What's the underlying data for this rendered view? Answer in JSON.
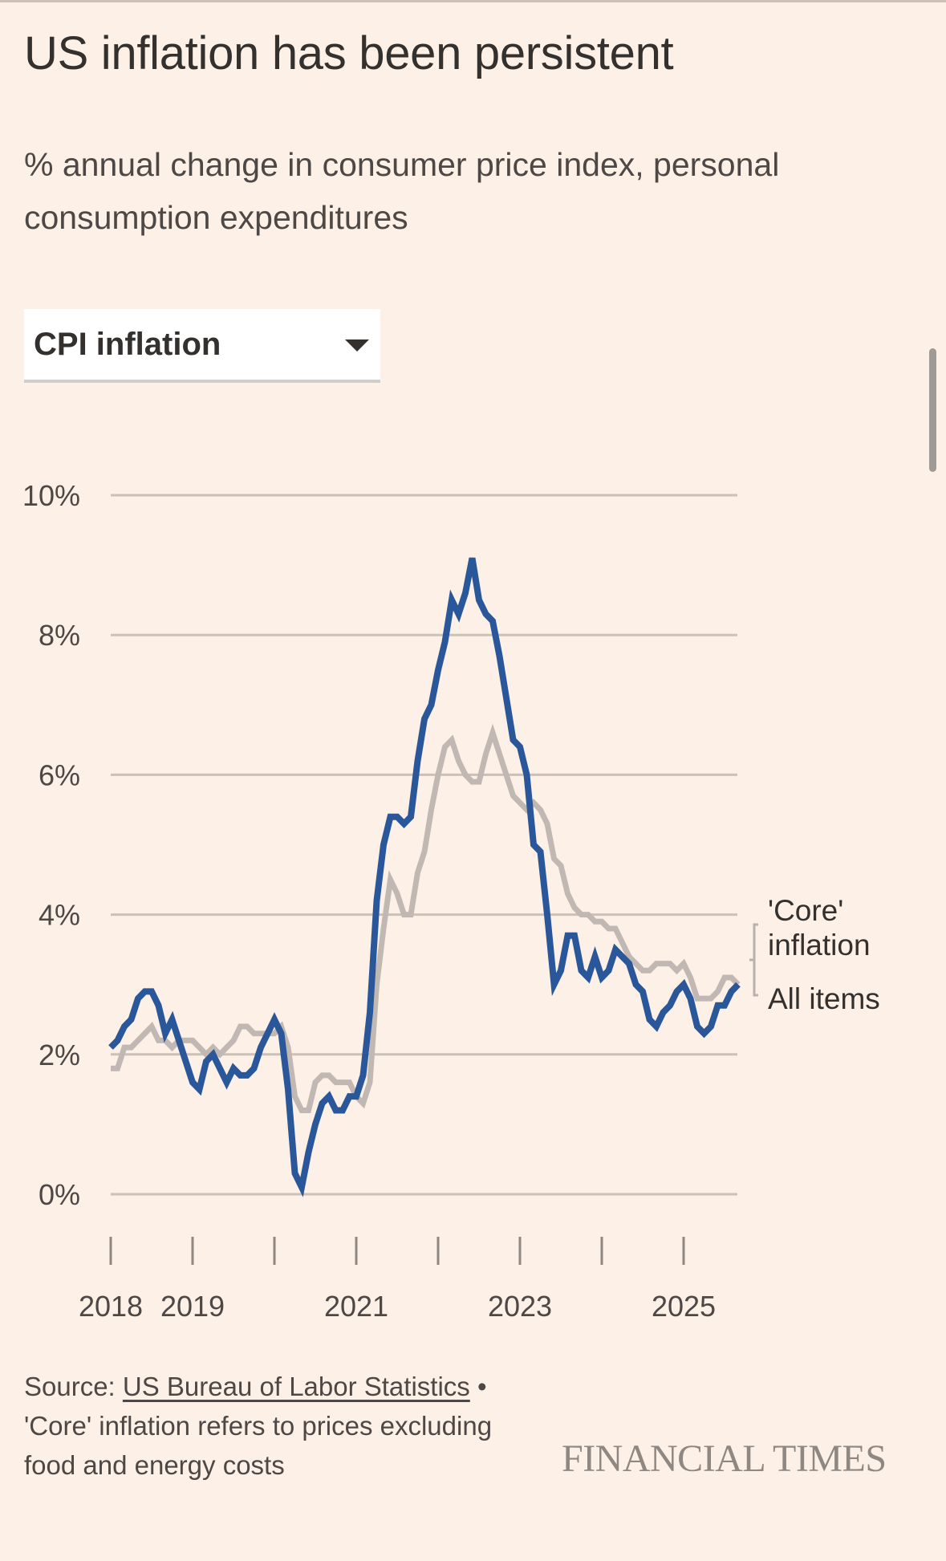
{
  "header": {
    "title": "US inflation has been persistent",
    "subtitle": "% annual change in consumer price index, personal consumption expenditures"
  },
  "dropdown": {
    "selected": "CPI inflation",
    "icon": "caret-down-icon"
  },
  "footer": {
    "source_prefix": "Source: ",
    "source_link": "US Bureau of Labor Statistics",
    "separator": " •",
    "note": "'Core' inflation refers to prices excluding food and energy costs",
    "brand": "FINANCIAL TIMES"
  },
  "colors": {
    "background": "#fdf0e6",
    "all_items": "#2a5799",
    "core": "#c2b8b3",
    "gridline": "#ccc1b7",
    "text": "#33302e"
  },
  "chart_data": {
    "type": "line",
    "title": "US inflation has been persistent",
    "subtitle": "% annual change in consumer price index, personal consumption expenditures",
    "xlabel": "",
    "ylabel": "",
    "x_start": "2018-01",
    "x_frequency": "monthly",
    "x_range": [
      "2018-01",
      "2025-09"
    ],
    "ylim": [
      0,
      10
    ],
    "y_ticks": [
      0,
      2,
      4,
      6,
      8,
      10
    ],
    "y_tick_labels": [
      "0%",
      "2%",
      "4%",
      "6%",
      "8%",
      "10%"
    ],
    "x_ticks": [
      2018,
      2019,
      2020,
      2021,
      2022,
      2023,
      2024,
      2025
    ],
    "x_tick_labels": [
      "2018",
      "2019",
      "",
      "2021",
      "",
      "2023",
      "",
      "2025"
    ],
    "grid": true,
    "legend": "right-end labels",
    "series": [
      {
        "name": "All items",
        "label": "All items",
        "values": [
          2.1,
          2.2,
          2.4,
          2.5,
          2.8,
          2.9,
          2.9,
          2.7,
          2.3,
          2.5,
          2.2,
          1.9,
          1.6,
          1.5,
          1.9,
          2.0,
          1.8,
          1.6,
          1.8,
          1.7,
          1.7,
          1.8,
          2.1,
          2.3,
          2.5,
          2.3,
          1.5,
          0.3,
          0.1,
          0.6,
          1.0,
          1.3,
          1.4,
          1.2,
          1.2,
          1.4,
          1.4,
          1.7,
          2.6,
          4.2,
          5.0,
          5.4,
          5.4,
          5.3,
          5.4,
          6.2,
          6.8,
          7.0,
          7.5,
          7.9,
          8.5,
          8.3,
          8.6,
          9.1,
          8.5,
          8.3,
          8.2,
          7.7,
          7.1,
          6.5,
          6.4,
          6.0,
          5.0,
          4.9,
          4.0,
          3.0,
          3.2,
          3.7,
          3.7,
          3.2,
          3.1,
          3.4,
          3.1,
          3.2,
          3.5,
          3.4,
          3.3,
          3.0,
          2.9,
          2.5,
          2.4,
          2.6,
          2.7,
          2.9,
          3.0,
          2.8,
          2.4,
          2.3,
          2.4,
          2.7,
          2.7,
          2.9,
          3.0
        ]
      },
      {
        "name": "'Core' inflation",
        "label": "'Core' inflation",
        "values": [
          1.8,
          1.8,
          2.1,
          2.1,
          2.2,
          2.3,
          2.4,
          2.2,
          2.2,
          2.1,
          2.2,
          2.2,
          2.2,
          2.1,
          2.0,
          2.1,
          2.0,
          2.1,
          2.2,
          2.4,
          2.4,
          2.3,
          2.3,
          2.3,
          2.3,
          2.4,
          2.1,
          1.4,
          1.2,
          1.2,
          1.6,
          1.7,
          1.7,
          1.6,
          1.6,
          1.6,
          1.4,
          1.3,
          1.6,
          3.0,
          3.8,
          4.5,
          4.3,
          4.0,
          4.0,
          4.6,
          4.9,
          5.5,
          6.0,
          6.4,
          6.5,
          6.2,
          6.0,
          5.9,
          5.9,
          6.3,
          6.6,
          6.3,
          6.0,
          5.7,
          5.6,
          5.5,
          5.6,
          5.5,
          5.3,
          4.8,
          4.7,
          4.3,
          4.1,
          4.0,
          4.0,
          3.9,
          3.9,
          3.8,
          3.8,
          3.6,
          3.4,
          3.3,
          3.2,
          3.2,
          3.3,
          3.3,
          3.3,
          3.2,
          3.3,
          3.1,
          2.8,
          2.8,
          2.8,
          2.9,
          3.1,
          3.1,
          3.0
        ]
      }
    ]
  }
}
